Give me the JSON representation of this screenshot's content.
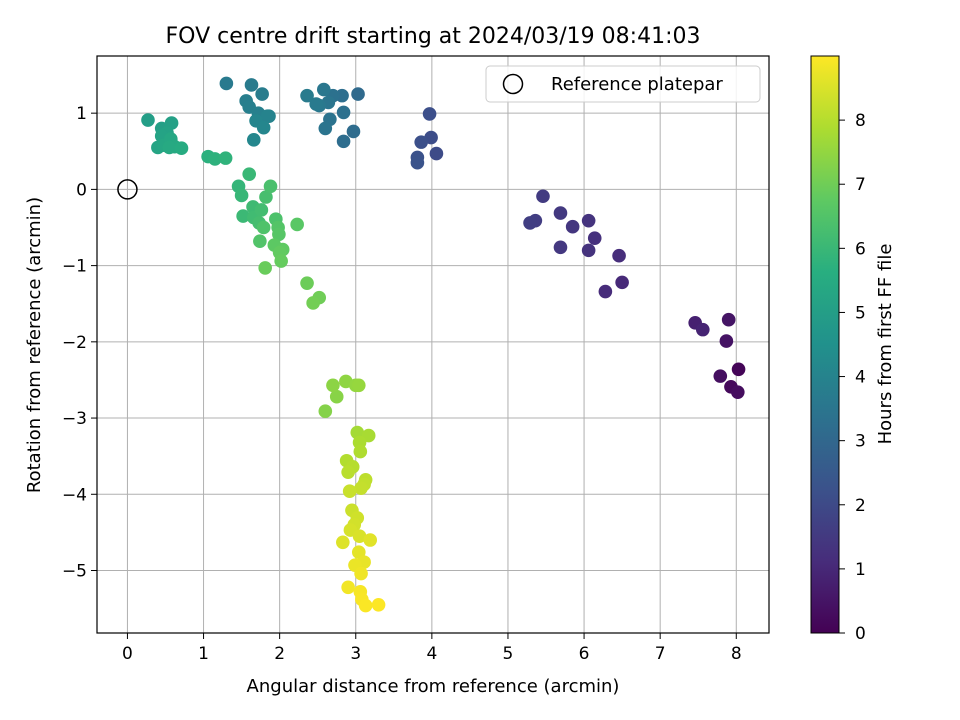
{
  "chart_data": {
    "type": "scatter",
    "title": "FOV centre drift starting at 2024/03/19 08:41:03",
    "xlabel": "Angular distance from reference (arcmin)",
    "ylabel": "Rotation from reference (arcmin)",
    "xlim": [
      -0.4,
      8.43
    ],
    "ylim": [
      -5.82,
      1.75
    ],
    "xticks": [
      "0",
      "1",
      "2",
      "3",
      "4",
      "5",
      "6",
      "7",
      "8"
    ],
    "yticks": [
      "1",
      "0",
      "−1",
      "−2",
      "−3",
      "−4",
      "−5"
    ],
    "grid": true,
    "colormap": "viridis",
    "colorbar": {
      "label": "Hours from first FF file",
      "range": [
        0,
        9
      ],
      "ticks": [
        "0",
        "1",
        "2",
        "3",
        "4",
        "5",
        "6",
        "7",
        "8"
      ]
    },
    "legend": {
      "position": "top-right",
      "entries": [
        {
          "name": "Reference platepar",
          "marker": "open-circle",
          "x": 0,
          "y": 0
        }
      ]
    },
    "points": [
      {
        "x": 8.03,
        "y": -2.36,
        "h": 0.1
      },
      {
        "x": 7.93,
        "y": -2.59,
        "h": 0.2
      },
      {
        "x": 8.02,
        "y": -2.66,
        "h": 0.3
      },
      {
        "x": 7.79,
        "y": -2.45,
        "h": 0.35
      },
      {
        "x": 7.87,
        "y": -1.99,
        "h": 0.45
      },
      {
        "x": 7.9,
        "y": -1.71,
        "h": 0.5
      },
      {
        "x": 7.46,
        "y": -1.75,
        "h": 0.8
      },
      {
        "x": 7.56,
        "y": -1.84,
        "h": 0.9
      },
      {
        "x": 6.5,
        "y": -1.22,
        "h": 1.05
      },
      {
        "x": 6.28,
        "y": -1.34,
        "h": 1.1
      },
      {
        "x": 6.46,
        "y": -0.87,
        "h": 1.15
      },
      {
        "x": 6.14,
        "y": -0.64,
        "h": 1.25
      },
      {
        "x": 6.06,
        "y": -0.8,
        "h": 1.3
      },
      {
        "x": 6.06,
        "y": -0.41,
        "h": 1.35
      },
      {
        "x": 5.85,
        "y": -0.49,
        "h": 1.4
      },
      {
        "x": 5.69,
        "y": -0.76,
        "h": 1.45
      },
      {
        "x": 5.69,
        "y": -0.31,
        "h": 1.5
      },
      {
        "x": 5.46,
        "y": -0.09,
        "h": 1.55
      },
      {
        "x": 5.36,
        "y": -0.41,
        "h": 1.6
      },
      {
        "x": 5.29,
        "y": -0.44,
        "h": 1.65
      },
      {
        "x": 4.06,
        "y": 0.47,
        "h": 2.05
      },
      {
        "x": 3.99,
        "y": 0.68,
        "h": 2.1
      },
      {
        "x": 3.97,
        "y": 0.99,
        "h": 2.15
      },
      {
        "x": 3.86,
        "y": 0.62,
        "h": 2.2
      },
      {
        "x": 3.81,
        "y": 0.42,
        "h": 2.25
      },
      {
        "x": 3.81,
        "y": 0.35,
        "h": 2.3
      },
      {
        "x": 3.03,
        "y": 1.25,
        "h": 3.1
      },
      {
        "x": 2.97,
        "y": 0.76,
        "h": 3.15
      },
      {
        "x": 2.84,
        "y": 0.63,
        "h": 3.2
      },
      {
        "x": 2.82,
        "y": 1.23,
        "h": 3.25
      },
      {
        "x": 2.84,
        "y": 1.01,
        "h": 3.3
      },
      {
        "x": 2.7,
        "y": 1.23,
        "h": 3.35
      },
      {
        "x": 2.66,
        "y": 0.92,
        "h": 3.4
      },
      {
        "x": 2.6,
        "y": 0.8,
        "h": 3.45
      },
      {
        "x": 2.64,
        "y": 1.14,
        "h": 3.5
      },
      {
        "x": 2.58,
        "y": 1.31,
        "h": 3.55
      },
      {
        "x": 2.52,
        "y": 1.1,
        "h": 3.6
      },
      {
        "x": 2.48,
        "y": 1.12,
        "h": 3.65
      },
      {
        "x": 2.36,
        "y": 1.23,
        "h": 3.7
      },
      {
        "x": 1.3,
        "y": 1.39,
        "h": 3.65
      },
      {
        "x": 1.63,
        "y": 1.37,
        "h": 3.7
      },
      {
        "x": 1.77,
        "y": 1.25,
        "h": 3.75
      },
      {
        "x": 1.56,
        "y": 1.16,
        "h": 3.8
      },
      {
        "x": 1.6,
        "y": 1.08,
        "h": 3.85
      },
      {
        "x": 1.72,
        "y": 1.0,
        "h": 3.9
      },
      {
        "x": 1.86,
        "y": 0.96,
        "h": 3.95
      },
      {
        "x": 1.84,
        "y": 0.96,
        "h": 4.0
      },
      {
        "x": 1.69,
        "y": 0.9,
        "h": 4.05
      },
      {
        "x": 1.79,
        "y": 0.81,
        "h": 4.1
      },
      {
        "x": 1.66,
        "y": 0.65,
        "h": 4.15
      },
      {
        "x": 0.27,
        "y": 0.91,
        "h": 5.0
      },
      {
        "x": 0.45,
        "y": 0.8,
        "h": 5.05
      },
      {
        "x": 0.58,
        "y": 0.87,
        "h": 5.1
      },
      {
        "x": 0.52,
        "y": 0.74,
        "h": 5.15
      },
      {
        "x": 0.45,
        "y": 0.7,
        "h": 5.2
      },
      {
        "x": 0.4,
        "y": 0.55,
        "h": 5.25
      },
      {
        "x": 0.48,
        "y": 0.58,
        "h": 5.3
      },
      {
        "x": 0.57,
        "y": 0.66,
        "h": 5.35
      },
      {
        "x": 0.62,
        "y": 0.56,
        "h": 5.4
      },
      {
        "x": 0.55,
        "y": 0.55,
        "h": 5.45
      },
      {
        "x": 0.71,
        "y": 0.54,
        "h": 5.5
      },
      {
        "x": 1.06,
        "y": 0.43,
        "h": 5.7
      },
      {
        "x": 1.15,
        "y": 0.4,
        "h": 5.75
      },
      {
        "x": 1.29,
        "y": 0.41,
        "h": 5.8
      },
      {
        "x": 1.46,
        "y": 0.04,
        "h": 5.9
      },
      {
        "x": 1.5,
        "y": -0.08,
        "h": 5.95
      },
      {
        "x": 1.6,
        "y": 0.2,
        "h": 6.0
      },
      {
        "x": 1.52,
        "y": -0.35,
        "h": 6.05
      },
      {
        "x": 1.65,
        "y": -0.23,
        "h": 6.1
      },
      {
        "x": 1.66,
        "y": -0.37,
        "h": 6.15
      },
      {
        "x": 1.76,
        "y": -0.27,
        "h": 6.2
      },
      {
        "x": 1.73,
        "y": -0.44,
        "h": 6.25
      },
      {
        "x": 1.82,
        "y": -0.1,
        "h": 6.3
      },
      {
        "x": 1.88,
        "y": 0.04,
        "h": 6.35
      },
      {
        "x": 1.95,
        "y": -0.39,
        "h": 6.4
      },
      {
        "x": 1.79,
        "y": -0.5,
        "h": 6.45
      },
      {
        "x": 1.74,
        "y": -0.68,
        "h": 6.5
      },
      {
        "x": 1.98,
        "y": -0.5,
        "h": 6.55
      },
      {
        "x": 1.99,
        "y": -0.59,
        "h": 6.6
      },
      {
        "x": 2.23,
        "y": -0.46,
        "h": 6.65
      },
      {
        "x": 1.93,
        "y": -0.73,
        "h": 6.7
      },
      {
        "x": 2.04,
        "y": -0.79,
        "h": 6.75
      },
      {
        "x": 2.0,
        "y": -0.83,
        "h": 6.8
      },
      {
        "x": 2.02,
        "y": -0.94,
        "h": 6.85
      },
      {
        "x": 1.81,
        "y": -1.03,
        "h": 6.9
      },
      {
        "x": 2.36,
        "y": -1.23,
        "h": 6.95
      },
      {
        "x": 2.52,
        "y": -1.42,
        "h": 7.0
      },
      {
        "x": 2.44,
        "y": -1.49,
        "h": 7.05
      },
      {
        "x": 2.6,
        "y": -2.91,
        "h": 7.3
      },
      {
        "x": 2.75,
        "y": -2.72,
        "h": 7.35
      },
      {
        "x": 2.7,
        "y": -2.57,
        "h": 7.4
      },
      {
        "x": 2.87,
        "y": -2.52,
        "h": 7.45
      },
      {
        "x": 3.0,
        "y": -2.57,
        "h": 7.5
      },
      {
        "x": 3.04,
        "y": -2.57,
        "h": 7.55
      },
      {
        "x": 3.02,
        "y": -3.19,
        "h": 7.75
      },
      {
        "x": 3.17,
        "y": -3.23,
        "h": 7.8
      },
      {
        "x": 3.05,
        "y": -3.32,
        "h": 7.85
      },
      {
        "x": 3.06,
        "y": -3.44,
        "h": 7.9
      },
      {
        "x": 2.88,
        "y": -3.56,
        "h": 7.95
      },
      {
        "x": 2.96,
        "y": -3.64,
        "h": 8.0
      },
      {
        "x": 2.9,
        "y": -3.71,
        "h": 8.05
      },
      {
        "x": 3.13,
        "y": -3.81,
        "h": 8.1
      },
      {
        "x": 3.11,
        "y": -3.87,
        "h": 8.15
      },
      {
        "x": 3.07,
        "y": -3.92,
        "h": 8.2
      },
      {
        "x": 2.92,
        "y": -3.96,
        "h": 8.25
      },
      {
        "x": 2.95,
        "y": -4.21,
        "h": 8.3
      },
      {
        "x": 3.02,
        "y": -4.31,
        "h": 8.35
      },
      {
        "x": 2.98,
        "y": -4.4,
        "h": 8.4
      },
      {
        "x": 2.93,
        "y": -4.47,
        "h": 8.45
      },
      {
        "x": 3.05,
        "y": -4.55,
        "h": 8.5
      },
      {
        "x": 2.83,
        "y": -4.63,
        "h": 8.55
      },
      {
        "x": 3.19,
        "y": -4.6,
        "h": 8.6
      },
      {
        "x": 3.04,
        "y": -4.76,
        "h": 8.65
      },
      {
        "x": 3.11,
        "y": -4.89,
        "h": 8.7
      },
      {
        "x": 2.99,
        "y": -4.93,
        "h": 8.75
      },
      {
        "x": 3.07,
        "y": -5.04,
        "h": 8.8
      },
      {
        "x": 2.9,
        "y": -5.22,
        "h": 8.85
      },
      {
        "x": 3.06,
        "y": -5.28,
        "h": 8.9
      },
      {
        "x": 3.08,
        "y": -5.38,
        "h": 8.93
      },
      {
        "x": 3.13,
        "y": -5.46,
        "h": 8.96
      },
      {
        "x": 3.3,
        "y": -5.45,
        "h": 8.99
      }
    ]
  }
}
